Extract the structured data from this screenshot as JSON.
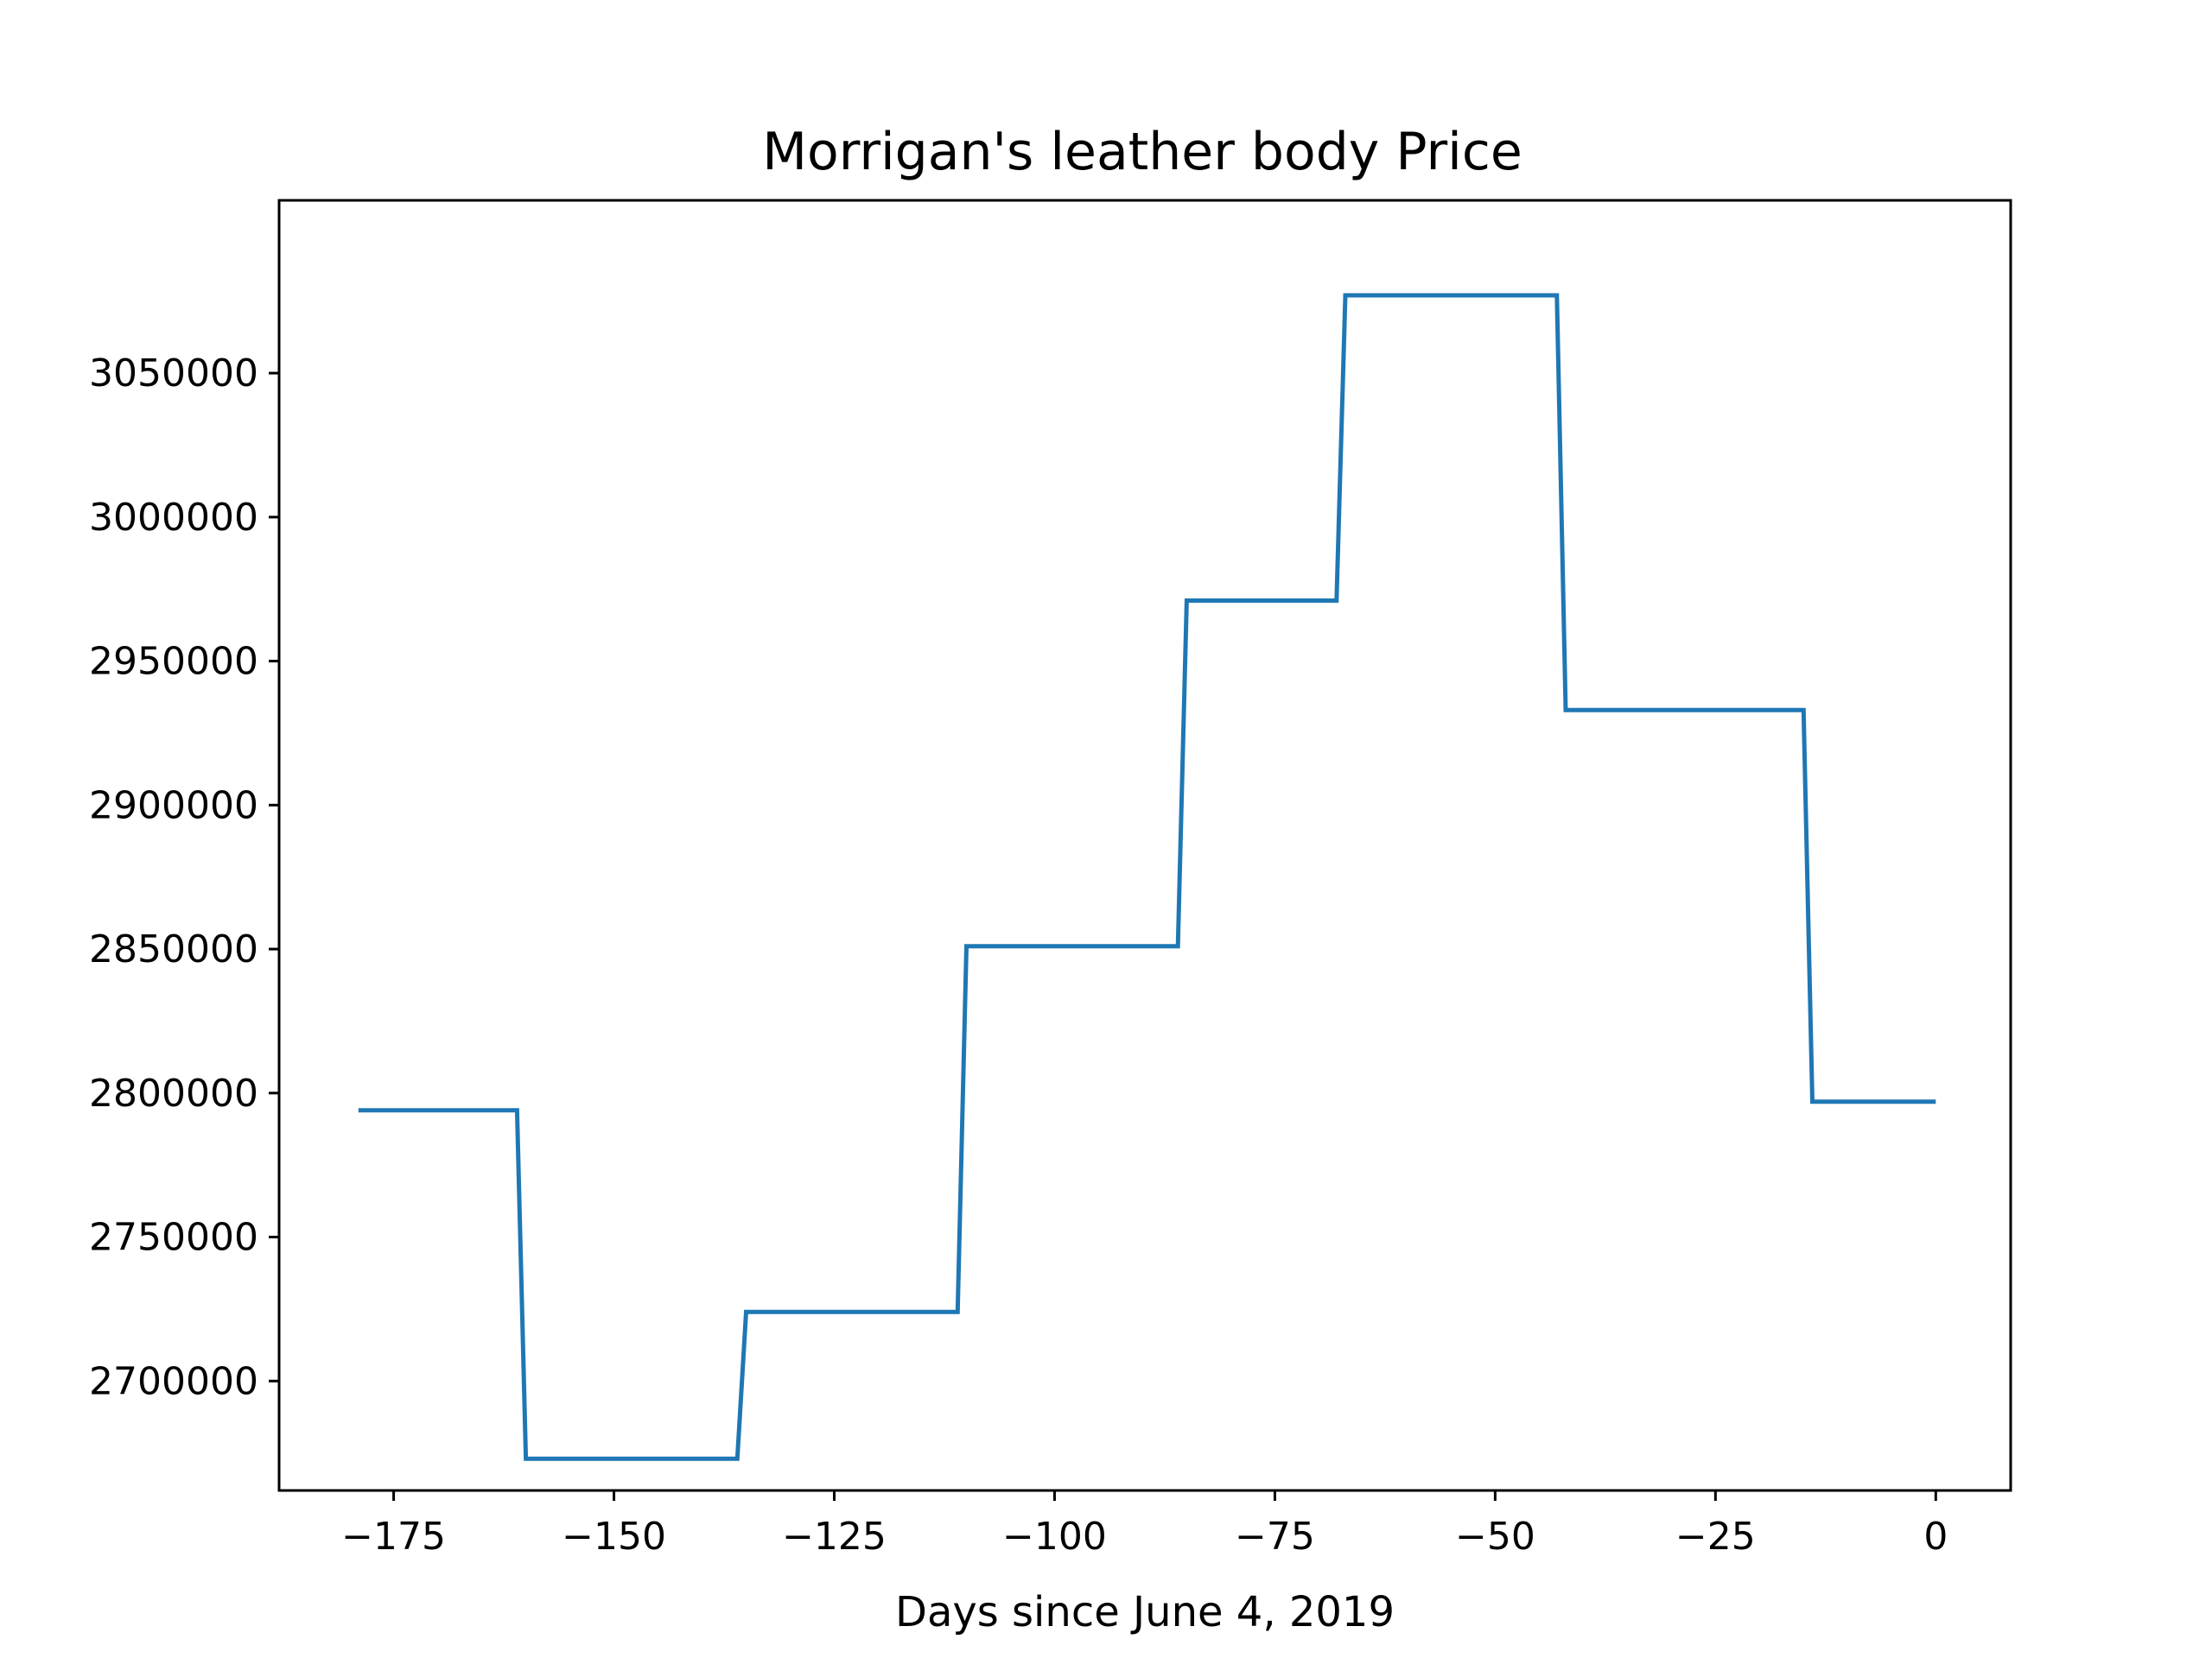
{
  "chart_data": {
    "type": "line",
    "drawstyle": "steps",
    "title": "Morrigan's leather body Price",
    "xlabel": "Days since June 4, 2019",
    "ylabel": "",
    "xlim": [
      -188,
      8.5
    ],
    "ylim": [
      2662000,
      3110000
    ],
    "xticks": [
      -175,
      -150,
      -125,
      -100,
      -75,
      -50,
      -25,
      0
    ],
    "yticks": [
      2700000,
      2750000,
      2800000,
      2850000,
      2900000,
      2950000,
      3000000,
      3050000
    ],
    "grid": false,
    "series": [
      {
        "color": "#1f77b4",
        "x": [
          -179,
          -161,
          -160,
          -136,
          -135,
          -111,
          -110,
          -86,
          -85,
          -68,
          -67,
          -43,
          -42,
          -15,
          -14,
          0
        ],
        "y": [
          2794000,
          2794000,
          2673000,
          2673000,
          2724000,
          2724000,
          2851000,
          2851000,
          2971000,
          2971000,
          3077000,
          3077000,
          2933000,
          2933000,
          2797000,
          2797000
        ]
      }
    ]
  }
}
